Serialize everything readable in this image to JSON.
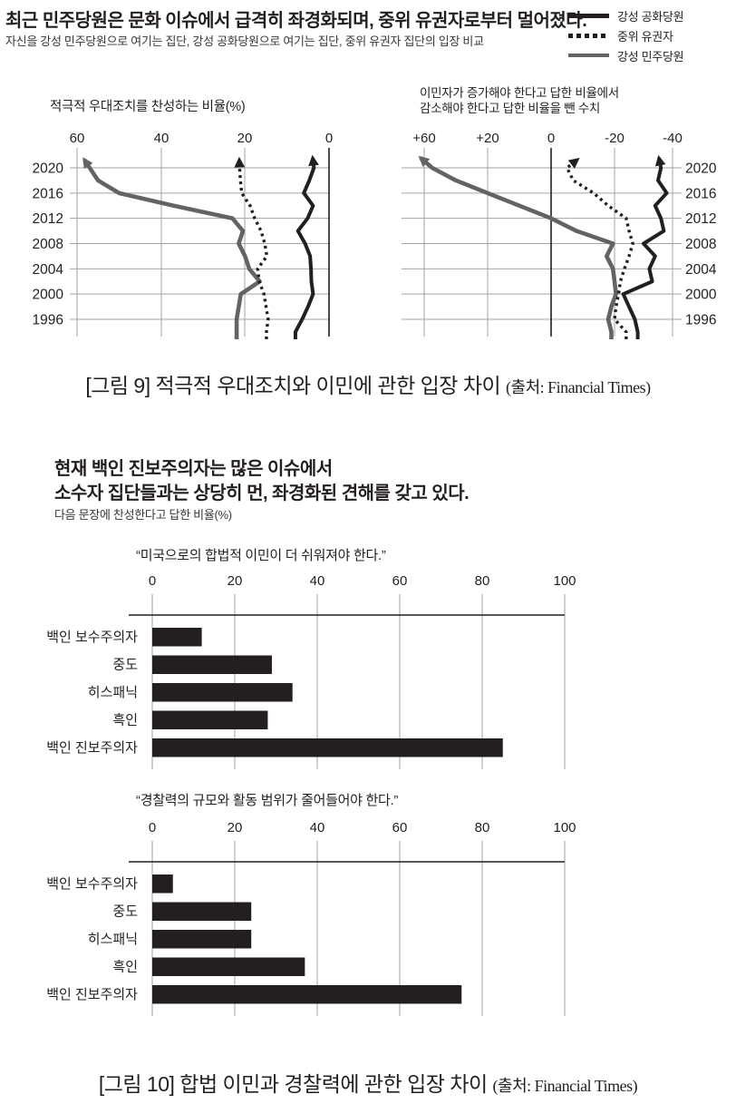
{
  "header": {
    "title": "최근 민주당원은 문화 이슈에서 급격히 좌경화되며, 중위 유권자로부터 멀어졌다.",
    "subtitle": "자신을 강성 민주당원으로 여기는 집단, 강성 공화당원으로 여기는 집단, 중위 유권자 집단의 입장 비교"
  },
  "legend": {
    "items": [
      {
        "label": "강성 공화당원",
        "style": "solid",
        "color": "#231f20"
      },
      {
        "label": "중위 유권자",
        "style": "dotted",
        "color": "#231f20"
      },
      {
        "label": "강성 민주당원",
        "style": "solid",
        "color": "#636363"
      }
    ]
  },
  "figure9": {
    "caption": "[그림 9] 적극적 우대조치와 이민에 관한 입장 차이",
    "source": "(출처: Financial Times)"
  },
  "section2": {
    "title_line1": "현재 백인 진보주의자는 많은 이슈에서",
    "title_line2": "소수자 집단들과는 상당히 먼, 좌경화된 견해를 갖고 있다.",
    "subtitle": "다음 문장에 찬성한다고 답한 비율(%)"
  },
  "figure10": {
    "caption": "[그림 10] 합법 이민과 경찰력에 관한 입장 차이",
    "source": "(출처: Financial Times)"
  },
  "colors": {
    "ink": "#231f20",
    "gray_line": "#636363",
    "grid": "#a3a3a3"
  },
  "chart_data": [
    {
      "type": "line",
      "id": "lc1",
      "title": "적극적 우대조치를 찬성하는 비율(%)",
      "x_ticks": [
        "60",
        "40",
        "20",
        "0"
      ],
      "zero_tick": "0",
      "x_axis_reversed": true,
      "year_labels_side": "left",
      "years": [
        2020,
        2016,
        2012,
        2008,
        2004,
        2000,
        1996
      ],
      "xlim": [
        0,
        60
      ],
      "grid": true,
      "series": [
        {
          "name": "강성 민주당원",
          "color_key": "gray",
          "color": "#636363",
          "style": "solid",
          "points": [
            [
              1994,
              22
            ],
            [
              1996,
              22
            ],
            [
              1998,
              21.5
            ],
            [
              2000,
              21
            ],
            [
              2002,
              16.5
            ],
            [
              2004,
              19
            ],
            [
              2006,
              20
            ],
            [
              2008,
              21.5
            ],
            [
              2010,
              20.5
            ],
            [
              2012,
              23
            ],
            [
              2014,
              37
            ],
            [
              2016,
              50
            ],
            [
              2018,
              55
            ],
            [
              2020,
              57
            ]
          ]
        },
        {
          "name": "중위 유권자",
          "color_key": "black",
          "color": "#231f20",
          "style": "dotted",
          "points": [
            [
              1994,
              14.9
            ],
            [
              1996,
              14.5
            ],
            [
              1998,
              15
            ],
            [
              2000,
              15.5
            ],
            [
              2002,
              16.6
            ],
            [
              2004,
              17
            ],
            [
              2006,
              14.8
            ],
            [
              2008,
              15.3
            ],
            [
              2010,
              16.2
            ],
            [
              2012,
              17.7
            ],
            [
              2014,
              18.8
            ],
            [
              2016,
              20.8
            ],
            [
              2018,
              21.1
            ],
            [
              2020,
              21.3
            ]
          ]
        },
        {
          "name": "강성 공화당원",
          "color_key": "black",
          "color": "#231f20",
          "style": "solid",
          "points": [
            [
              1994,
              8
            ],
            [
              1996,
              6.4
            ],
            [
              1998,
              5
            ],
            [
              2000,
              3.8
            ],
            [
              2002,
              4.2
            ],
            [
              2004,
              4.3
            ],
            [
              2006,
              4.5
            ],
            [
              2008,
              5.7
            ],
            [
              2010,
              7.4
            ],
            [
              2012,
              5.1
            ],
            [
              2014,
              3.8
            ],
            [
              2016,
              6
            ],
            [
              2018,
              4.7
            ],
            [
              2020,
              3.6
            ]
          ]
        }
      ]
    },
    {
      "type": "line",
      "id": "lc2",
      "title_line1": "이민자가 증가해야 한다고 답한 비율에서",
      "title_line2": "감소해야 한다고 답한 비율을 뺀 수치",
      "x_ticks": [
        "+60",
        "+20",
        "0",
        "-20",
        "-40"
      ],
      "zero_tick": "0",
      "x_axis_reversed": true,
      "year_labels_side": "right",
      "years": [
        2020,
        2016,
        2012,
        2008,
        2004,
        2000,
        1996
      ],
      "xlim": [
        -40,
        60
      ],
      "grid": true,
      "series": [
        {
          "name": "강성 민주당원",
          "color_key": "gray",
          "color": "#636363",
          "style": "solid",
          "points": [
            [
              1994,
              -19
            ],
            [
              1996,
              -18
            ],
            [
              1998,
              -19
            ],
            [
              2000,
              -20.5
            ],
            [
              2002,
              -20
            ],
            [
              2004,
              -19.5
            ],
            [
              2006,
              -17.5
            ],
            [
              2008,
              -19.5
            ],
            [
              2010,
              -8
            ],
            [
              2012,
              0
            ],
            [
              2014,
              10
            ],
            [
              2016,
              20
            ],
            [
              2018,
              40
            ],
            [
              2020,
              55
            ]
          ]
        },
        {
          "name": "중위 유권자",
          "color_key": "black",
          "color": "#231f20",
          "style": "dotted",
          "points": [
            [
              1994,
              -24
            ],
            [
              1996,
              -20
            ],
            [
              1998,
              -20.5
            ],
            [
              2000,
              -21.4
            ],
            [
              2002,
              -22
            ],
            [
              2004,
              -23.4
            ],
            [
              2006,
              -25
            ],
            [
              2008,
              -26.3
            ],
            [
              2010,
              -25
            ],
            [
              2012,
              -24
            ],
            [
              2014,
              -18
            ],
            [
              2016,
              -13.4
            ],
            [
              2018,
              -7
            ],
            [
              2020,
              -5
            ]
          ]
        },
        {
          "name": "강성 공화당원",
          "color_key": "black",
          "color": "#231f20",
          "style": "solid",
          "points": [
            [
              1994,
              -28
            ],
            [
              1996,
              -27
            ],
            [
              1998,
              -25
            ],
            [
              2000,
              -23
            ],
            [
              2002,
              -33
            ],
            [
              2004,
              -32
            ],
            [
              2006,
              -34
            ],
            [
              2008,
              -30
            ],
            [
              2010,
              -37
            ],
            [
              2012,
              -36
            ],
            [
              2014,
              -34
            ],
            [
              2016,
              -38
            ],
            [
              2018,
              -35
            ],
            [
              2020,
              -36
            ]
          ]
        }
      ]
    },
    {
      "type": "bar",
      "id": "bc1",
      "title": "“미국으로의 합법적 이민이 더 쉬워져야 한다.”",
      "x_ticks": [
        "0",
        "20",
        "40",
        "60",
        "80",
        "100"
      ],
      "xlim": [
        0,
        100
      ],
      "grid": true,
      "categories": [
        "백인 보수주의자",
        "중도",
        "히스패닉",
        "흑인",
        "백인 진보주의자"
      ],
      "values": [
        12,
        29,
        34,
        28,
        85
      ],
      "bar_color": "#231f20"
    },
    {
      "type": "bar",
      "id": "bc2",
      "title": "“경찰력의 규모와 활동 범위가 줄어들어야 한다.”",
      "x_ticks": [
        "0",
        "20",
        "40",
        "60",
        "80",
        "100"
      ],
      "xlim": [
        0,
        100
      ],
      "grid": true,
      "categories": [
        "백인 보수주의자",
        "중도",
        "히스패닉",
        "흑인",
        "백인 진보주의자"
      ],
      "values": [
        5,
        24,
        24,
        37,
        75
      ],
      "bar_color": "#231f20"
    }
  ]
}
